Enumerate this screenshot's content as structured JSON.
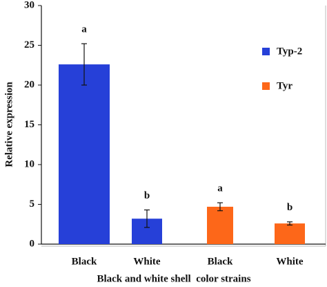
{
  "chart_data": {
    "type": "bar",
    "x_label": "Black and white shell  color strains",
    "y_label": "Relative expression",
    "categories": [
      "Black",
      "White",
      "Black",
      "White"
    ],
    "series": [
      {
        "name": "Typ-2",
        "color": "#2640d8",
        "values": [
          22.6,
          3.2,
          null,
          null
        ],
        "errors": [
          2.6,
          1.1,
          null,
          null
        ]
      },
      {
        "name": "Tyr",
        "color": "#fd6719",
        "values": [
          null,
          null,
          4.7,
          2.6
        ],
        "errors": [
          null,
          null,
          0.5,
          0.2
        ]
      }
    ],
    "annotations": [
      "a",
      "b",
      "a",
      "b"
    ],
    "ylim": [
      0,
      30
    ],
    "yticks": [
      0,
      5,
      10,
      15,
      20,
      25,
      30
    ],
    "legend": "upper right"
  }
}
